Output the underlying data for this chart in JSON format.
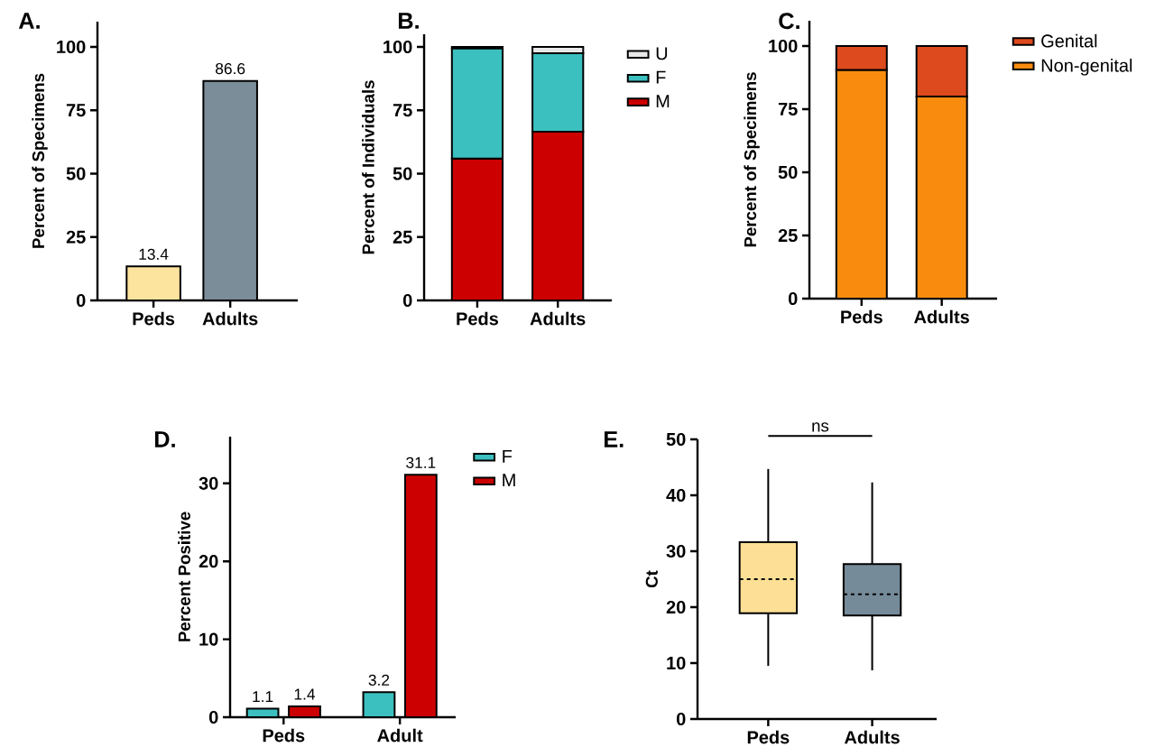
{
  "chart_data": [
    {
      "type": "bar",
      "title": "A.",
      "ylabel": "Percent of Specimens",
      "categories": [
        "Peds",
        "Adults"
      ],
      "values": [
        13.4,
        86.6
      ],
      "colors": [
        "#fde49e",
        "#7b8d99"
      ],
      "data_labels": true,
      "ylim": [
        0,
        110
      ],
      "yticks": [
        0,
        25,
        50,
        75,
        100
      ]
    },
    {
      "type": "bar",
      "title": "B.",
      "ylabel": "Percent of Individuals",
      "categories": [
        "Peds",
        "Adults"
      ],
      "stacked": true,
      "legend": "right",
      "ylim": [
        0,
        105
      ],
      "yticks": [
        0,
        25,
        50,
        75,
        100
      ],
      "series": [
        {
          "name": "M",
          "color": "#cc0000",
          "values": [
            56,
            66.5
          ]
        },
        {
          "name": "F",
          "color": "#3bbfbf",
          "values": [
            43.5,
            31
          ]
        },
        {
          "name": "U",
          "color": "#e8e8e8",
          "values": [
            0.5,
            2.5
          ]
        }
      ]
    },
    {
      "type": "bar",
      "title": "C.",
      "ylabel": "Percent of Specimens",
      "categories": [
        "Peds",
        "Adults"
      ],
      "stacked": true,
      "legend": "right",
      "ylim": [
        0,
        110
      ],
      "yticks": [
        0,
        25,
        50,
        75,
        100
      ],
      "series": [
        {
          "name": "Non-genital",
          "color": "#f98c0f",
          "values": [
            90.5,
            80
          ]
        },
        {
          "name": "Genital",
          "color": "#dd4a1e",
          "values": [
            9.5,
            20
          ]
        }
      ]
    },
    {
      "type": "bar",
      "title": "D.",
      "ylabel": "Percent Positive",
      "categories": [
        "Peds",
        "Adult"
      ],
      "legend": "right",
      "data_labels": true,
      "ylim": [
        0,
        36
      ],
      "yticks": [
        0,
        10,
        20,
        30
      ],
      "series": [
        {
          "name": "F",
          "color": "#3bbfbf",
          "values": [
            1.1,
            3.2
          ]
        },
        {
          "name": "M",
          "color": "#cc0000",
          "values": [
            1.4,
            31.1
          ]
        }
      ]
    },
    {
      "type": "box",
      "title": "E.",
      "ylabel": "Ct",
      "categories": [
        "Peds",
        "Adults"
      ],
      "colors": [
        "#fddf96",
        "#768b99"
      ],
      "ylim": [
        0,
        50
      ],
      "yticks": [
        0,
        10,
        20,
        30,
        40,
        50
      ],
      "annotations": [
        "ns"
      ],
      "boxes": [
        {
          "low": 9.5,
          "q1": 18.9,
          "median": 25,
          "q3": 31.6,
          "high": 44.7
        },
        {
          "low": 8.7,
          "q1": 18.5,
          "median": 22.3,
          "q3": 27.7,
          "high": 42.3
        }
      ]
    }
  ]
}
